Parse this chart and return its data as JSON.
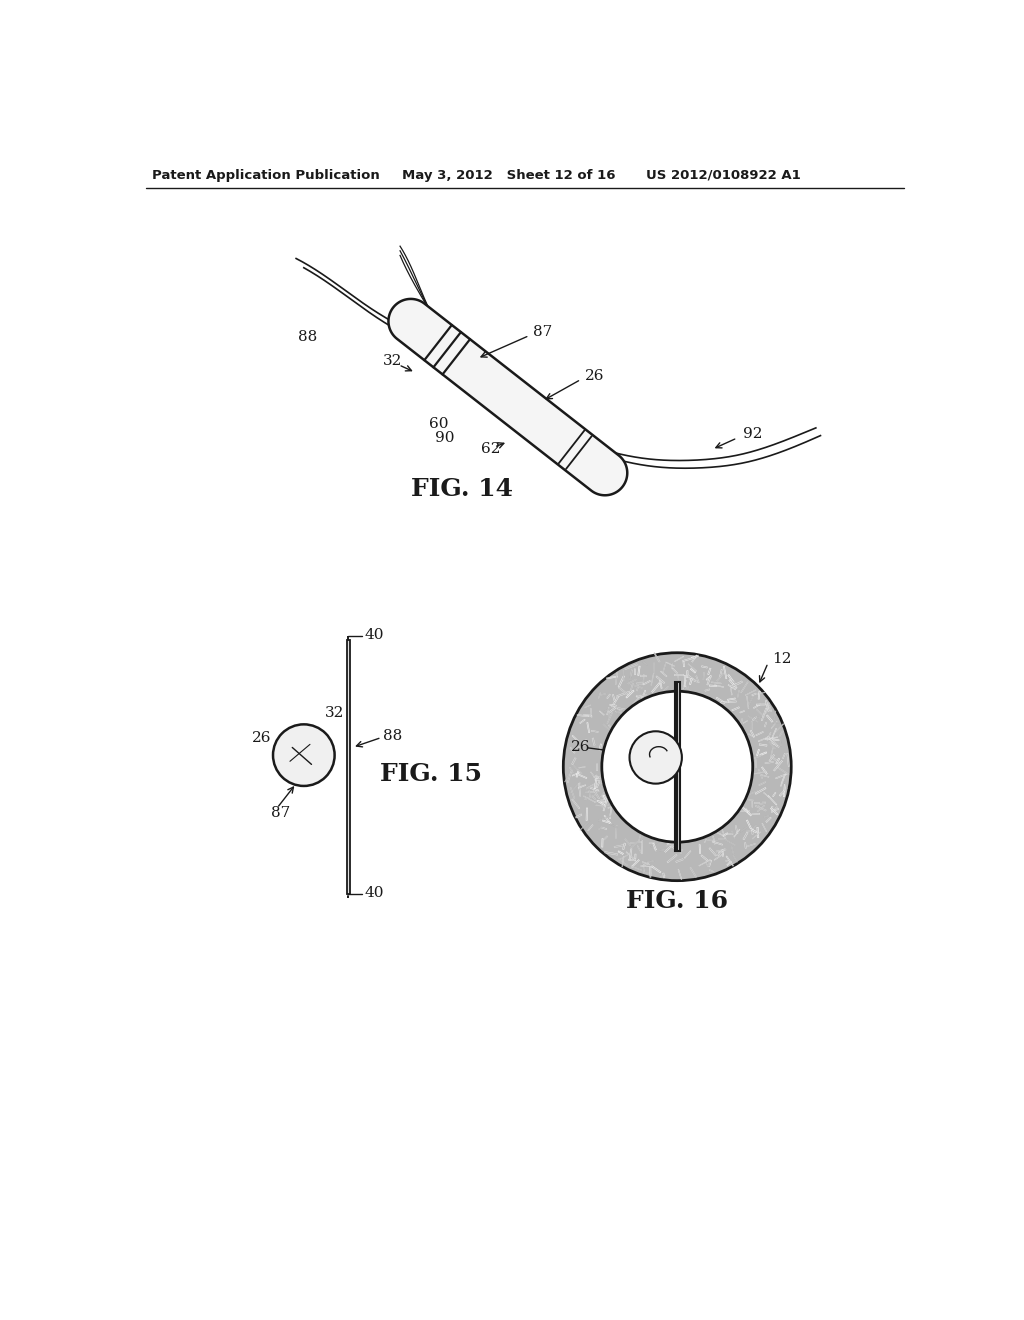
{
  "bg_color": "#ffffff",
  "header_left": "Patent Application Publication",
  "header_mid": "May 3, 2012   Sheet 12 of 16",
  "header_right": "US 2012/0108922 A1",
  "fig14_label": "FIG. 14",
  "fig15_label": "FIG. 15",
  "fig16_label": "FIG. 16",
  "line_color": "#1a1a1a",
  "text_color": "#1a1a1a"
}
